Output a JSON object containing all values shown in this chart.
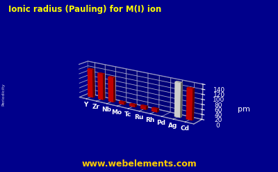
{
  "title": "Ionic radius (Pauling) for M(I) ion",
  "elements": [
    "Y",
    "Zr",
    "Nb",
    "Mo",
    "Tc",
    "Ru",
    "Rh",
    "Pd",
    "Ag",
    "Cd"
  ],
  "values": [
    120,
    110,
    104,
    10,
    10,
    14,
    14,
    0,
    140,
    126
  ],
  "bar_colors": [
    "#dd0000",
    "#dd0000",
    "#dd0000",
    "#cc0000",
    "#cc0000",
    "#cc0000",
    "#cc0000",
    "#cc0000",
    "#e8e8e8",
    "#dd0000"
  ],
  "ylabel": "pm",
  "ylim": [
    0,
    140
  ],
  "yticks": [
    0,
    20,
    40,
    60,
    80,
    100,
    120,
    140
  ],
  "background_color": "#00008b",
  "floor_color": "#1a1aaa",
  "back_wall_color": "#000066",
  "title_color": "#ffff00",
  "axis_color": "#ffffff",
  "grid_color": "#aaaacc",
  "watermark": "www.webelements.com",
  "watermark_color": "#ffcc00",
  "side_label": "Periodicity",
  "side_label_color": "#ffffff",
  "elev": 18,
  "azim": -55,
  "bar_width": 0.5,
  "bar_depth": 0.4
}
